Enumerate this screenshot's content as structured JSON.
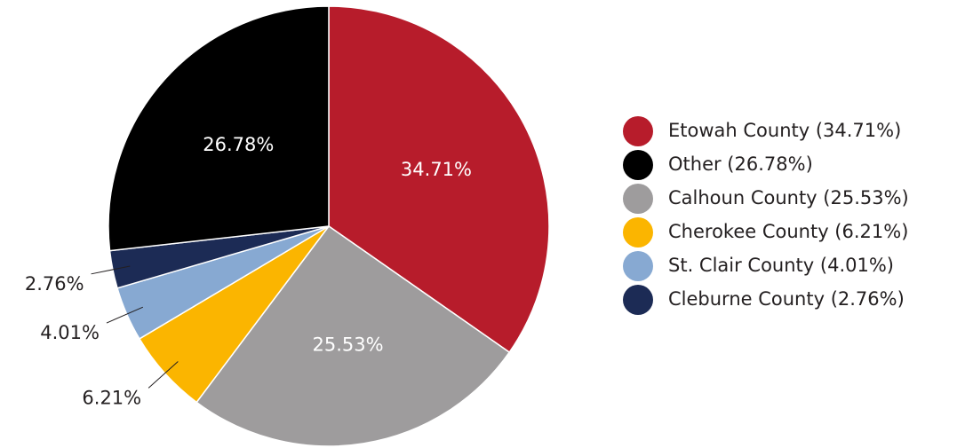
{
  "chart_data": {
    "type": "pie",
    "categories": [
      "Etowah County",
      "Calhoun County",
      "Cherokee County",
      "St. Clair County",
      "Cleburne County",
      "Other"
    ],
    "values": [
      34.71,
      25.53,
      6.21,
      4.01,
      2.76,
      26.78
    ],
    "value_labels": [
      "34.71%",
      "25.53%",
      "6.21%",
      "4.01%",
      "2.76%",
      "26.78%"
    ],
    "colors": [
      "#b71c2b",
      "#9e9c9d",
      "#fbb500",
      "#87a9d2",
      "#1c2b55",
      "#000000"
    ],
    "legend": [
      "Etowah County (34.71%)",
      "Other (26.78%)",
      "Calhoun County (25.53%)",
      "Cherokee County (6.21%)",
      "St. Clair County (4.01%)",
      "Cleburne County (2.76%)"
    ]
  }
}
